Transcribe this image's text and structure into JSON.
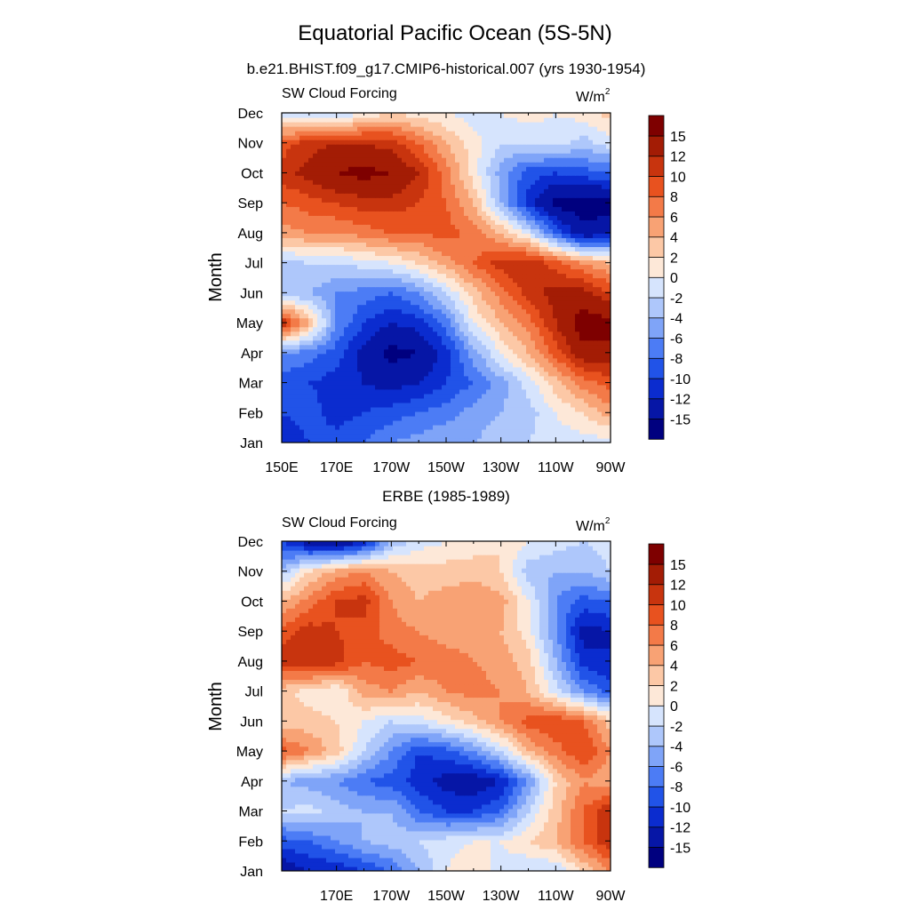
{
  "figure": {
    "title": "Equatorial Pacific Ocean (5S-5N)",
    "colormap": [
      "#00007f",
      "#0616a6",
      "#0b2ccf",
      "#2153e8",
      "#4c7cf5",
      "#7fa4f8",
      "#aec7fb",
      "#d6e4fd",
      "#fde8d8",
      "#fcc8a6",
      "#f8a274",
      "#f37a48",
      "#e8521f",
      "#c8340e",
      "#a31c05",
      "#7e0000"
    ],
    "colorbar_labels": [
      "-15",
      "-12",
      "-10",
      "-8",
      "-6",
      "-4",
      "-2",
      "0",
      "2",
      "4",
      "6",
      "8",
      "10",
      "12",
      "15"
    ],
    "units_base": "W/m",
    "units_exp": "2"
  },
  "chart_data": [
    {
      "type": "heatmap",
      "title": "b.e21.BHIST.f09_g17.CMIP6-historical.007 (yrs 1930-1954)",
      "left_string": "SW Cloud Forcing",
      "ylabel": "Month",
      "xlabel": "",
      "x_ticks": [
        "150E",
        "170E",
        "170W",
        "150W",
        "130W",
        "110W",
        "90W"
      ],
      "y_ticks": [
        "Jan",
        "Feb",
        "Mar",
        "Apr",
        "May",
        "Jun",
        "Jul",
        "Aug",
        "Sep",
        "Oct",
        "Nov",
        "Dec"
      ],
      "x_range": [
        150,
        270
      ],
      "x": [
        150,
        160,
        170,
        180,
        190,
        200,
        210,
        220,
        230,
        240,
        250,
        260,
        270
      ],
      "y": [
        "Jan",
        "Feb",
        "Mar",
        "Apr",
        "May",
        "Jun",
        "Jul",
        "Aug",
        "Sep",
        "Oct",
        "Nov",
        "Dec"
      ],
      "z": [
        [
          -12,
          -10,
          -9,
          -8,
          -6,
          -5,
          -4,
          -4,
          -3,
          -2,
          -1,
          -1,
          -1
        ],
        [
          -10,
          -9,
          -11,
          -10,
          -9,
          -8,
          -7,
          -5,
          -4,
          -3,
          0,
          2,
          5
        ],
        [
          -9,
          -10,
          -11,
          -12,
          -13,
          -12,
          -10,
          -8,
          -5,
          -1,
          3,
          7,
          9
        ],
        [
          -6,
          -7,
          -9,
          -13,
          -16,
          -15,
          -11,
          -5,
          0,
          4,
          9,
          14,
          14
        ],
        [
          12,
          4,
          -6,
          -10,
          -12,
          -11,
          -7,
          0,
          4,
          7,
          12,
          17,
          16
        ],
        [
          -3,
          -4,
          -6,
          -7,
          -8,
          -6,
          -2,
          3,
          7,
          11,
          13,
          13,
          10
        ],
        [
          -3,
          -2,
          -2,
          -1,
          0,
          2,
          5,
          8,
          11,
          12,
          9,
          6,
          4
        ],
        [
          5,
          6,
          6,
          7,
          8,
          8,
          9,
          7,
          4,
          -1,
          -8,
          -14,
          -13
        ],
        [
          8,
          9,
          10,
          11,
          11,
          10,
          8,
          4,
          -4,
          -11,
          -16,
          -17,
          -16
        ],
        [
          11,
          13,
          15,
          16,
          15,
          12,
          7,
          1,
          -5,
          -9,
          -10,
          -9,
          -8
        ],
        [
          9,
          11,
          12,
          12,
          11,
          8,
          4,
          1,
          -2,
          -2,
          -1,
          -3,
          -1
        ],
        [
          -1,
          -3,
          -2,
          0,
          2,
          1,
          0,
          -1,
          0,
          1,
          0,
          1,
          3
        ]
      ],
      "levels": [
        -15,
        -12,
        -10,
        -8,
        -6,
        -4,
        -2,
        0,
        2,
        4,
        6,
        8,
        10,
        12,
        15
      ]
    },
    {
      "type": "heatmap",
      "title": "ERBE (1985-1989)",
      "left_string": "SW Cloud Forcing",
      "ylabel": "Month",
      "xlabel": "",
      "x_ticks": [
        "",
        "170E",
        "170W",
        "150W",
        "130W",
        "110W",
        "90W"
      ],
      "y_ticks": [
        "Jan",
        "Feb",
        "Mar",
        "Apr",
        "May",
        "Jun",
        "Jul",
        "Aug",
        "Sep",
        "Oct",
        "Nov",
        "Dec"
      ],
      "x_range": [
        150,
        270
      ],
      "x": [
        150,
        160,
        170,
        180,
        190,
        200,
        210,
        220,
        230,
        240,
        250,
        260,
        270
      ],
      "y": [
        "Jan",
        "Feb",
        "Mar",
        "Apr",
        "May",
        "Jun",
        "Jul",
        "Aug",
        "Sep",
        "Oct",
        "Nov",
        "Dec"
      ],
      "z": [
        [
          -14,
          -12,
          -12,
          -10,
          -8,
          -4,
          0,
          2,
          -1,
          -2,
          -2,
          2,
          6
        ],
        [
          -9,
          -8,
          -6,
          -4,
          -3,
          -2,
          -1,
          0,
          0,
          2,
          4,
          8,
          12
        ],
        [
          -2,
          -1,
          -3,
          -4,
          -4,
          -8,
          -10,
          -10,
          -8,
          -2,
          3,
          8,
          12
        ],
        [
          -4,
          -5,
          -6,
          -8,
          -9,
          -11,
          -13,
          -14,
          -12,
          -6,
          2,
          6,
          4
        ],
        [
          9,
          6,
          3,
          -2,
          -6,
          -10,
          -9,
          -6,
          -2,
          4,
          7,
          10,
          6
        ],
        [
          2,
          3,
          2,
          0,
          -2,
          -1,
          1,
          3,
          6,
          9,
          10,
          8,
          3
        ],
        [
          3,
          1,
          0,
          5,
          6,
          4,
          6,
          7,
          6,
          4,
          -1,
          -6,
          -9
        ],
        [
          11,
          12,
          11,
          8,
          9,
          8,
          7,
          6,
          5,
          3,
          -4,
          -11,
          -12
        ],
        [
          9,
          11,
          10,
          9,
          7,
          6,
          5,
          5,
          4,
          1,
          -6,
          -13,
          -12
        ],
        [
          4,
          7,
          10,
          11,
          6,
          4,
          5,
          6,
          5,
          0,
          -6,
          -9,
          -8
        ],
        [
          -3,
          2,
          5,
          6,
          4,
          3,
          3,
          3,
          2,
          -3,
          -4,
          -4,
          -2
        ],
        [
          -10,
          -14,
          -15,
          -12,
          -4,
          -1,
          0,
          1,
          2,
          0,
          -1,
          -2,
          -1
        ]
      ],
      "levels": [
        -15,
        -12,
        -10,
        -8,
        -6,
        -4,
        -2,
        0,
        2,
        4,
        6,
        8,
        10,
        12,
        15
      ]
    }
  ]
}
